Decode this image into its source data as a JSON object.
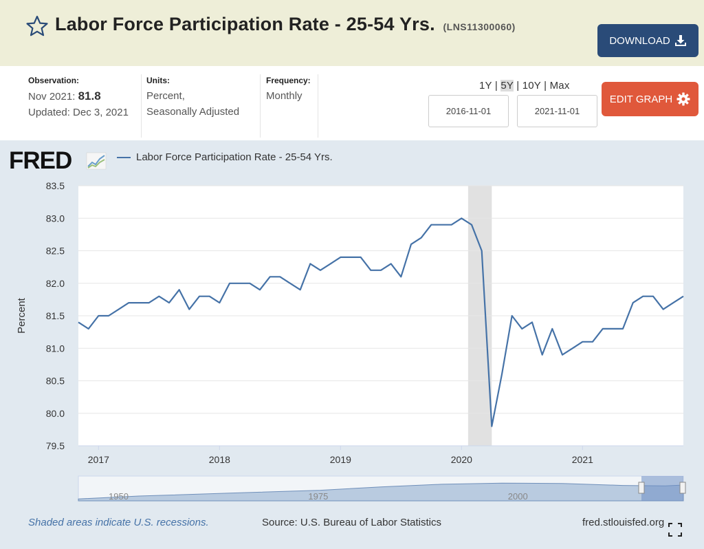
{
  "header": {
    "title": "Labor Force Participation Rate - 25-54 Yrs.",
    "series_id": "(LNS11300060)",
    "download_label": "DOWNLOAD",
    "star_icon": "star-outline-icon",
    "download_icon": "download-icon"
  },
  "meta": {
    "observation_label": "Observation:",
    "observation_date": "Nov 2021:",
    "observation_value": "81.8",
    "updated": "Updated: Dec 3, 2021",
    "units_label": "Units:",
    "units_line1": "Percent,",
    "units_line2": "Seasonally Adjusted",
    "frequency_label": "Frequency:",
    "frequency_value": "Monthly"
  },
  "controls": {
    "range_1y": "1Y",
    "range_5y": "5Y",
    "range_10y": "10Y",
    "range_max": "Max",
    "separator": "|",
    "start_date": "2016-11-01",
    "end_date": "2021-11-01",
    "edit_label": "EDIT GRAPH",
    "edit_icon": "gear-icon"
  },
  "colors": {
    "line": "#4572a7",
    "recession": "#e1e1e1",
    "panel": "#e1e9f0",
    "download_bg": "#2a4b78",
    "edit_bg": "#e0583b"
  },
  "chart_data": {
    "type": "line",
    "ylabel": "Percent",
    "ylim": [
      79.5,
      83.5
    ],
    "y_ticks": [
      "83.5",
      "83.0",
      "82.5",
      "82.0",
      "81.5",
      "81.0",
      "80.5",
      "80.0",
      "79.5"
    ],
    "x_ticks": [
      "2017",
      "2018",
      "2019",
      "2020",
      "2021"
    ],
    "grid": true,
    "legend_position": "top-left",
    "recession_shading": {
      "start": "2020-02",
      "end": "2020-04"
    },
    "series": [
      {
        "name": "Labor Force Participation Rate - 25-54 Yrs.",
        "x": [
          "2016-11",
          "2016-12",
          "2017-01",
          "2017-02",
          "2017-03",
          "2017-04",
          "2017-05",
          "2017-06",
          "2017-07",
          "2017-08",
          "2017-09",
          "2017-10",
          "2017-11",
          "2017-12",
          "2018-01",
          "2018-02",
          "2018-03",
          "2018-04",
          "2018-05",
          "2018-06",
          "2018-07",
          "2018-08",
          "2018-09",
          "2018-10",
          "2018-11",
          "2018-12",
          "2019-01",
          "2019-02",
          "2019-03",
          "2019-04",
          "2019-05",
          "2019-06",
          "2019-07",
          "2019-08",
          "2019-09",
          "2019-10",
          "2019-11",
          "2019-12",
          "2020-01",
          "2020-02",
          "2020-03",
          "2020-04",
          "2020-05",
          "2020-06",
          "2020-07",
          "2020-08",
          "2020-09",
          "2020-10",
          "2020-11",
          "2020-12",
          "2021-01",
          "2021-02",
          "2021-03",
          "2021-04",
          "2021-05",
          "2021-06",
          "2021-07",
          "2021-08",
          "2021-09",
          "2021-10",
          "2021-11"
        ],
        "values": [
          81.4,
          81.3,
          81.5,
          81.5,
          81.6,
          81.7,
          81.7,
          81.7,
          81.8,
          81.7,
          81.9,
          81.6,
          81.8,
          81.8,
          81.7,
          82.0,
          82.0,
          82.0,
          81.9,
          82.1,
          82.1,
          82.0,
          81.9,
          82.3,
          82.2,
          82.3,
          82.4,
          82.4,
          82.4,
          82.2,
          82.2,
          82.3,
          82.1,
          82.6,
          82.7,
          82.9,
          82.9,
          82.9,
          83.0,
          82.9,
          82.5,
          79.8,
          80.6,
          81.5,
          81.3,
          81.4,
          80.9,
          81.3,
          80.9,
          81.0,
          81.1,
          81.1,
          81.3,
          81.3,
          81.3,
          81.7,
          81.8,
          81.8,
          81.6,
          81.7,
          81.8
        ]
      }
    ]
  },
  "navigator": {
    "labels": [
      "1950",
      "1975",
      "2000"
    ]
  },
  "footer": {
    "recession_note": "Shaded areas indicate U.S. recessions.",
    "source": "Source: U.S. Bureau of Labor Statistics",
    "url": "fred.stlouisfed.org",
    "fullscreen_icon": "fullscreen-icon"
  }
}
